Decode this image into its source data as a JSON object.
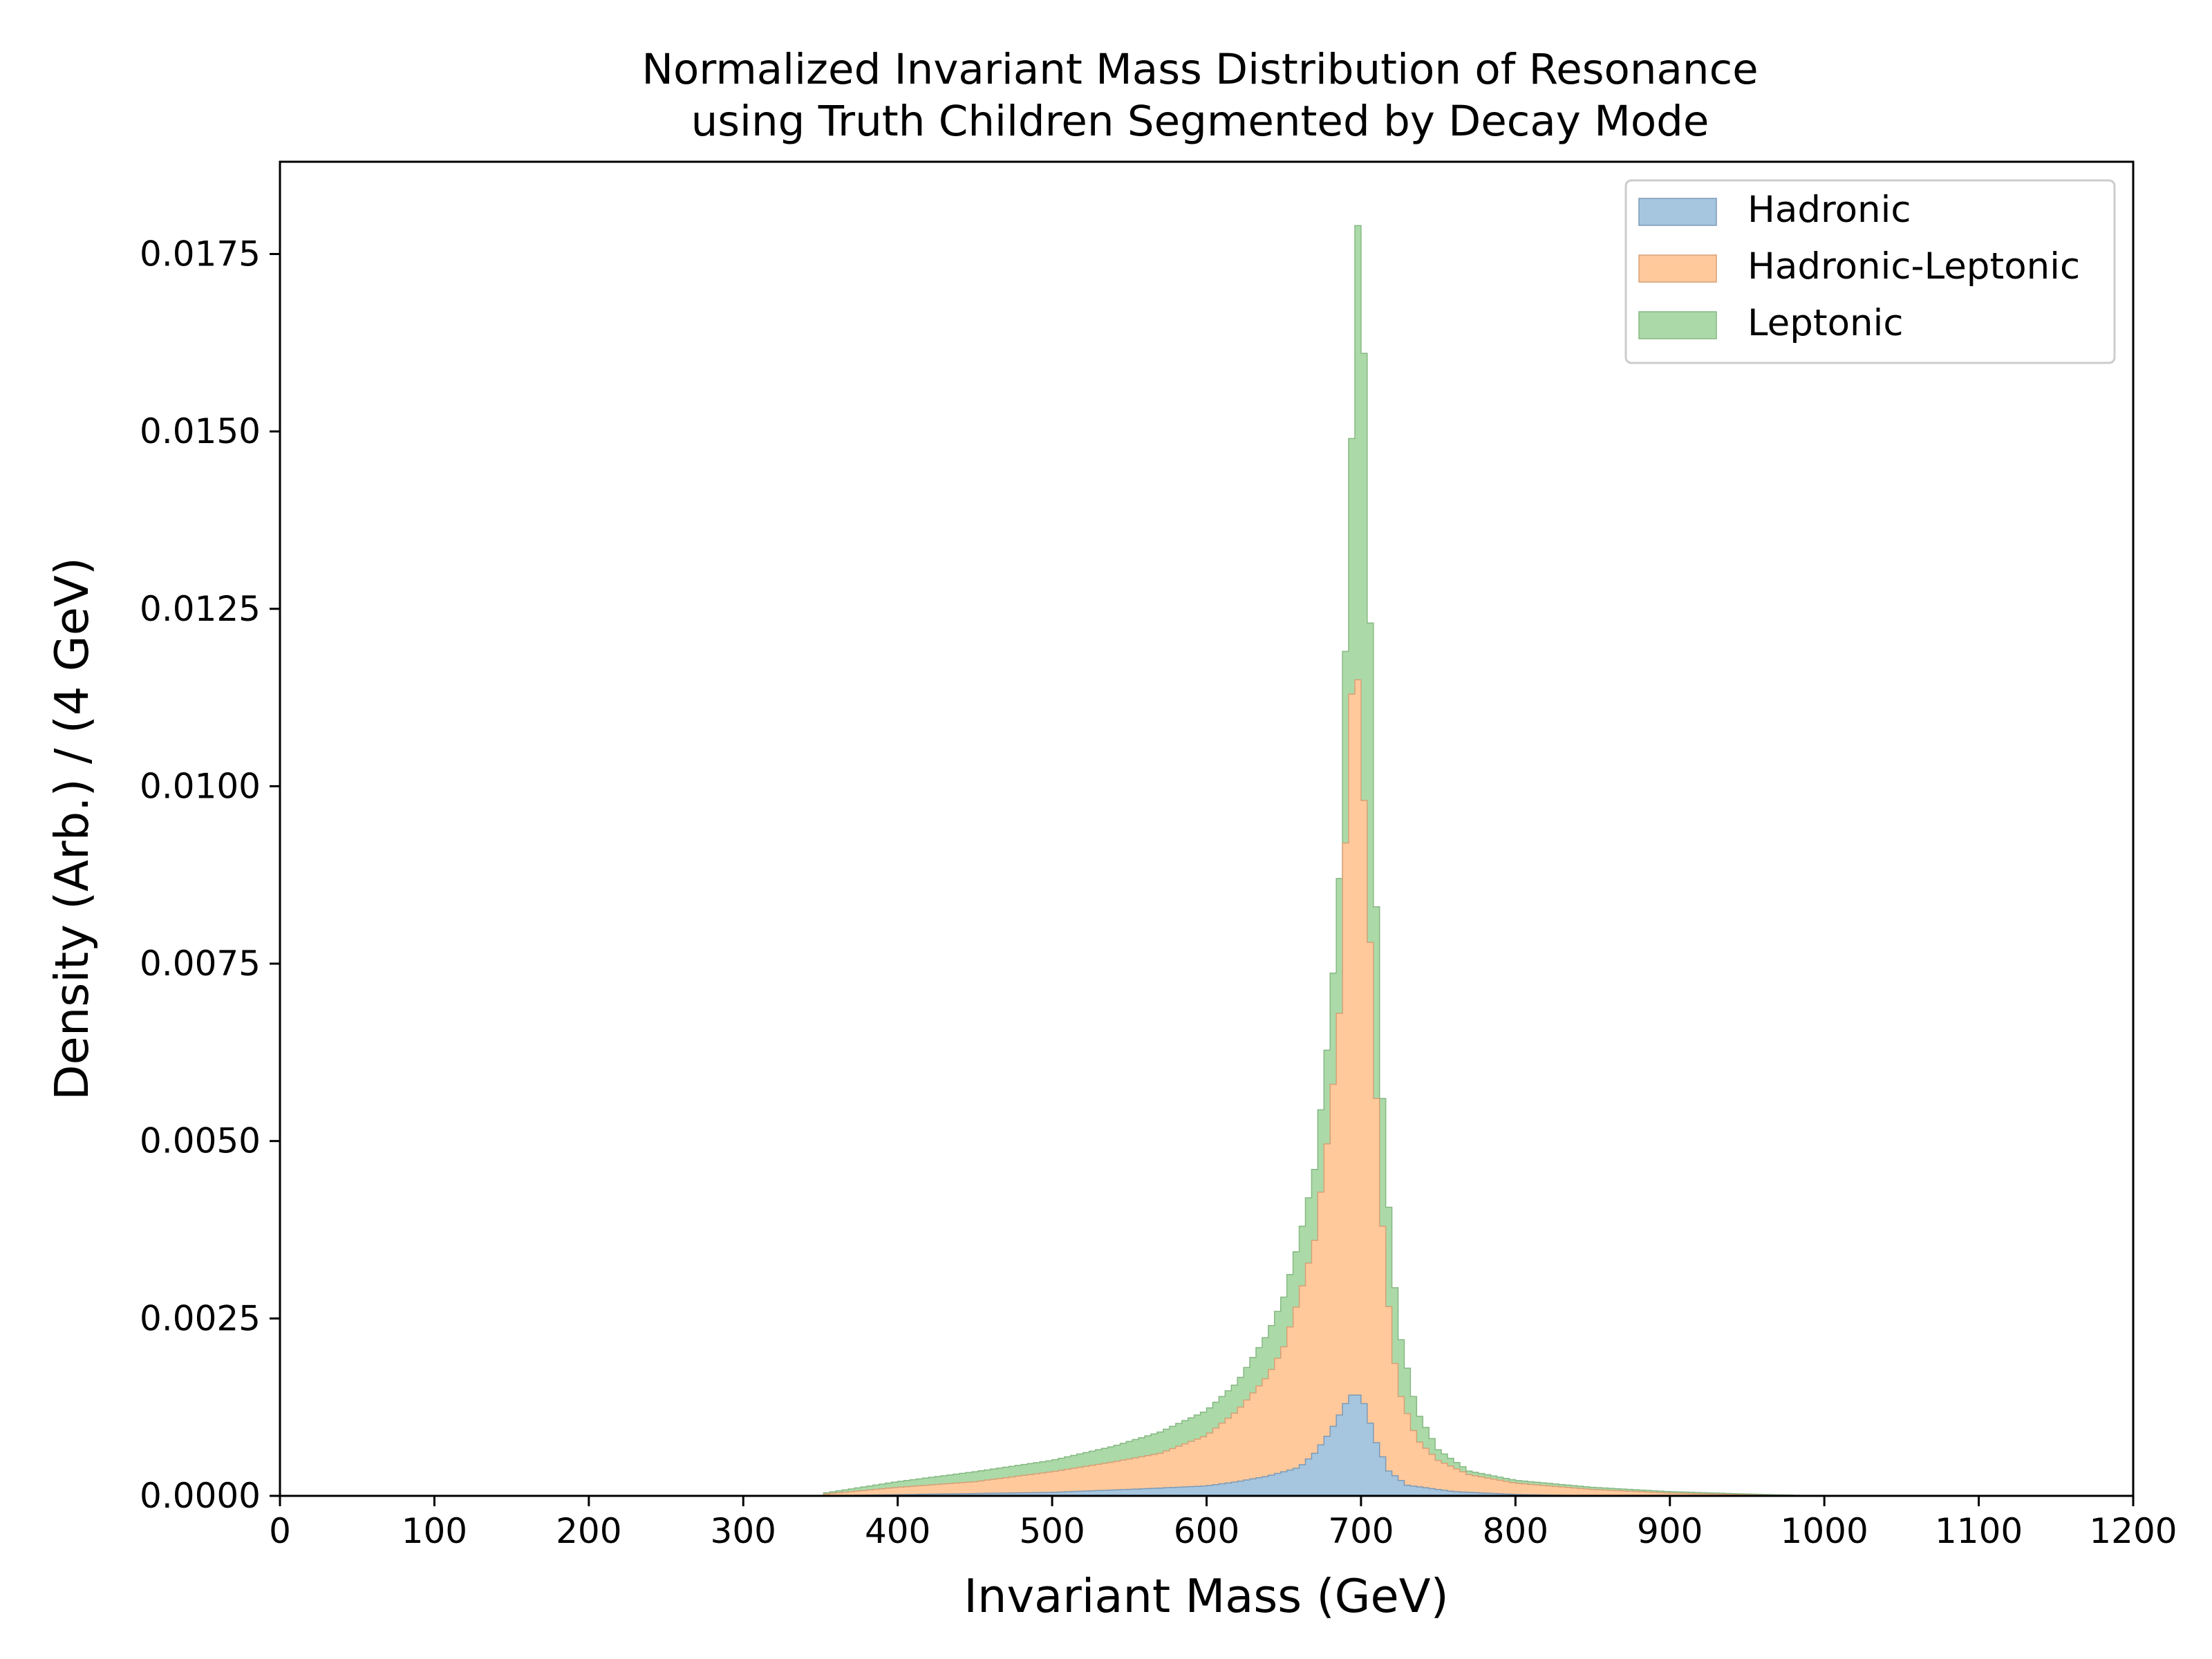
{
  "chart_data": {
    "type": "histogram-stacked",
    "title_lines": [
      "Normalized Invariant Mass Distribution of Resonance",
      "using Truth Children Segmented by Decay Mode"
    ],
    "xlabel": "Invariant Mass (GeV)",
    "ylabel": "Density (Arb.) / (4 GeV)",
    "xlim": [
      0,
      1200
    ],
    "ylim": [
      0,
      0.0188
    ],
    "x_ticks": [
      0,
      100,
      200,
      300,
      400,
      500,
      600,
      700,
      800,
      900,
      1000,
      1100,
      1200
    ],
    "x_tick_labels": [
      "0",
      "100",
      "200",
      "300",
      "400",
      "500",
      "600",
      "700",
      "800",
      "900",
      "1000",
      "1100",
      "1200"
    ],
    "y_ticks": [
      0,
      0.0025,
      0.005,
      0.0075,
      0.01,
      0.0125,
      0.015,
      0.0175
    ],
    "y_tick_labels": [
      "0.0000",
      "0.0025",
      "0.0050",
      "0.0075",
      "0.0100",
      "0.0125",
      "0.0150",
      "0.0175"
    ],
    "bin_width": 4,
    "legend_position": "top-right",
    "grid": false,
    "series": [
      {
        "name": "Hadronic",
        "color": "#a6c6e0",
        "edge": "#7d9ab5",
        "points": [
          [
            350,
            0
          ],
          [
            500,
            5e-05
          ],
          [
            560,
            0.0001
          ],
          [
            600,
            0.00014
          ],
          [
            620,
            0.0002
          ],
          [
            640,
            0.00028
          ],
          [
            660,
            0.0004
          ],
          [
            670,
            0.0006
          ],
          [
            680,
            0.0009
          ],
          [
            690,
            0.0013
          ],
          [
            696,
            0.00148
          ],
          [
            702,
            0.0013
          ],
          [
            710,
            0.00075
          ],
          [
            718,
            0.00035
          ],
          [
            730,
            0.00015
          ],
          [
            760,
            6e-05
          ],
          [
            800,
            2e-05
          ],
          [
            850,
            0
          ]
        ]
      },
      {
        "name": "Hadronic-Leptonic",
        "color": "#ffc99c",
        "edge": "#d6a077",
        "points": [
          [
            350,
            2e-05
          ],
          [
            400,
            0.00012
          ],
          [
            450,
            0.0002
          ],
          [
            500,
            0.00034
          ],
          [
            540,
            0.00048
          ],
          [
            570,
            0.0006
          ],
          [
            600,
            0.00085
          ],
          [
            620,
            0.0012
          ],
          [
            640,
            0.0017
          ],
          [
            650,
            0.0021
          ],
          [
            660,
            0.0028
          ],
          [
            670,
            0.0036
          ],
          [
            680,
            0.0053
          ],
          [
            686,
            0.0068
          ],
          [
            690,
            0.0092
          ],
          [
            694,
            0.0113
          ],
          [
            698,
            0.0115
          ],
          [
            702,
            0.0098
          ],
          [
            706,
            0.0078
          ],
          [
            710,
            0.0056
          ],
          [
            714,
            0.0038
          ],
          [
            720,
            0.0021
          ],
          [
            726,
            0.0014
          ],
          [
            736,
            0.0008
          ],
          [
            750,
            0.0005
          ],
          [
            770,
            0.0003
          ],
          [
            800,
            0.00018
          ],
          [
            850,
            9e-05
          ],
          [
            900,
            4e-05
          ],
          [
            960,
            1e-05
          ],
          [
            1000,
            0
          ]
        ]
      },
      {
        "name": "Leptonic",
        "color": "#abdaa8",
        "edge": "#86b883",
        "points": [
          [
            350,
            3e-05
          ],
          [
            400,
            0.0002
          ],
          [
            450,
            0.00034
          ],
          [
            500,
            0.0005
          ],
          [
            540,
            0.0007
          ],
          [
            570,
            0.0009
          ],
          [
            600,
            0.0012
          ],
          [
            620,
            0.0016
          ],
          [
            640,
            0.0023
          ],
          [
            650,
            0.0028
          ],
          [
            660,
            0.0036
          ],
          [
            670,
            0.0046
          ],
          [
            680,
            0.0067
          ],
          [
            686,
            0.0087
          ],
          [
            690,
            0.0119
          ],
          [
            694,
            0.0149
          ],
          [
            698,
            0.0179
          ],
          [
            702,
            0.0161
          ],
          [
            706,
            0.0123
          ],
          [
            710,
            0.0083
          ],
          [
            714,
            0.0056
          ],
          [
            720,
            0.0033
          ],
          [
            726,
            0.0022
          ],
          [
            736,
            0.0012
          ],
          [
            750,
            0.00065
          ],
          [
            770,
            0.00035
          ],
          [
            800,
            0.00022
          ],
          [
            850,
            0.00012
          ],
          [
            900,
            6e-05
          ],
          [
            960,
            2e-05
          ],
          [
            1000,
            0
          ]
        ]
      }
    ]
  }
}
